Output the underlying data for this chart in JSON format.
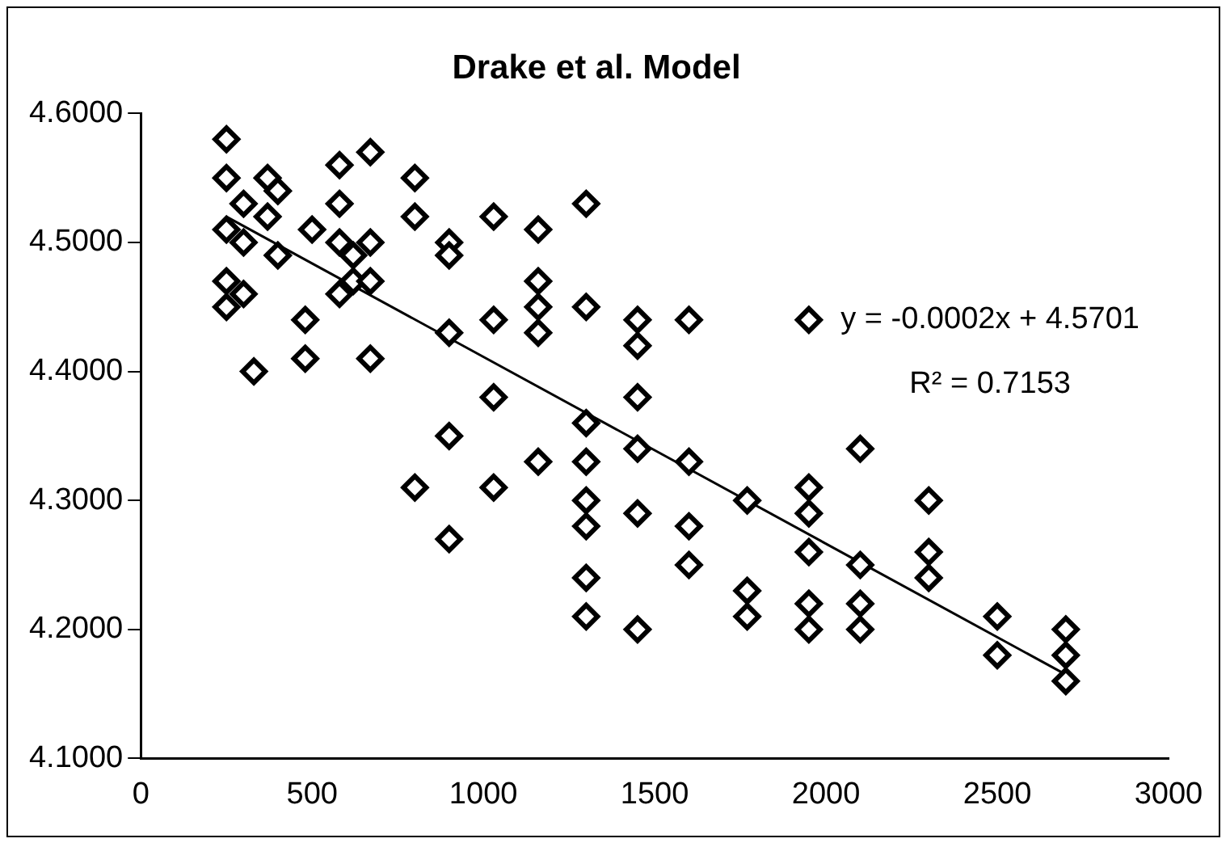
{
  "chart_data": {
    "type": "scatter",
    "title": "Drake et al. Model",
    "marker": "diamond",
    "grid": false,
    "legend": false,
    "xlim": [
      0,
      3000
    ],
    "xticks": [
      0,
      500,
      1000,
      1500,
      2000,
      2500,
      3000
    ],
    "ylim": [
      4.1,
      4.6
    ],
    "yticks": [
      {
        "value": 4.1,
        "label": "4.1000"
      },
      {
        "value": 4.2,
        "label": "4.2000"
      },
      {
        "value": 4.3,
        "label": "4.3000"
      },
      {
        "value": 4.4,
        "label": "4.4000"
      },
      {
        "value": 4.5,
        "label": "4.5000"
      },
      {
        "value": 4.6,
        "label": "4.6000"
      }
    ],
    "annotations": [
      "y = -0.0002x + 4.5701",
      "R² = 0.7153"
    ],
    "series": [
      {
        "color": "#000000",
        "x": [
          250,
          250,
          250,
          250,
          250,
          300,
          300,
          300,
          330,
          370,
          370,
          400,
          400,
          480,
          480,
          500,
          580,
          580,
          580,
          580,
          620,
          620,
          670,
          670,
          670,
          670,
          800,
          800,
          800,
          900,
          900,
          900,
          900,
          900,
          1030,
          1030,
          1030,
          1030,
          1160,
          1160,
          1160,
          1160,
          1160,
          1300,
          1300,
          1300,
          1300,
          1300,
          1300,
          1300,
          1300,
          1450,
          1450,
          1450,
          1450,
          1450,
          1450,
          1600,
          1600,
          1600,
          1600,
          1770,
          1770,
          1770,
          1950,
          1950,
          1950,
          1950,
          1950,
          1950,
          2100,
          2100,
          2100,
          2100,
          2300,
          2300,
          2300,
          2500,
          2500,
          2700,
          2700,
          2700
        ],
        "values": [
          4.58,
          4.55,
          4.51,
          4.47,
          4.45,
          4.53,
          4.5,
          4.46,
          4.4,
          4.55,
          4.52,
          4.54,
          4.49,
          4.44,
          4.41,
          4.51,
          4.56,
          4.53,
          4.5,
          4.46,
          4.49,
          4.47,
          4.57,
          4.5,
          4.47,
          4.41,
          4.55,
          4.52,
          4.31,
          4.5,
          4.49,
          4.43,
          4.35,
          4.27,
          4.52,
          4.44,
          4.38,
          4.31,
          4.51,
          4.47,
          4.45,
          4.43,
          4.33,
          4.53,
          4.45,
          4.36,
          4.33,
          4.3,
          4.28,
          4.24,
          4.21,
          4.44,
          4.42,
          4.38,
          4.34,
          4.29,
          4.2,
          4.44,
          4.33,
          4.28,
          4.25,
          4.3,
          4.23,
          4.21,
          4.44,
          4.31,
          4.29,
          4.26,
          4.22,
          4.2,
          4.34,
          4.25,
          4.22,
          4.2,
          4.3,
          4.26,
          4.24,
          4.21,
          4.18,
          4.2,
          4.18,
          4.16
        ]
      },
      {
        "type": "line",
        "color": "#000000",
        "x": [
          250,
          2700
        ],
        "values": [
          4.52,
          4.165
        ],
        "marker": "none"
      }
    ]
  }
}
